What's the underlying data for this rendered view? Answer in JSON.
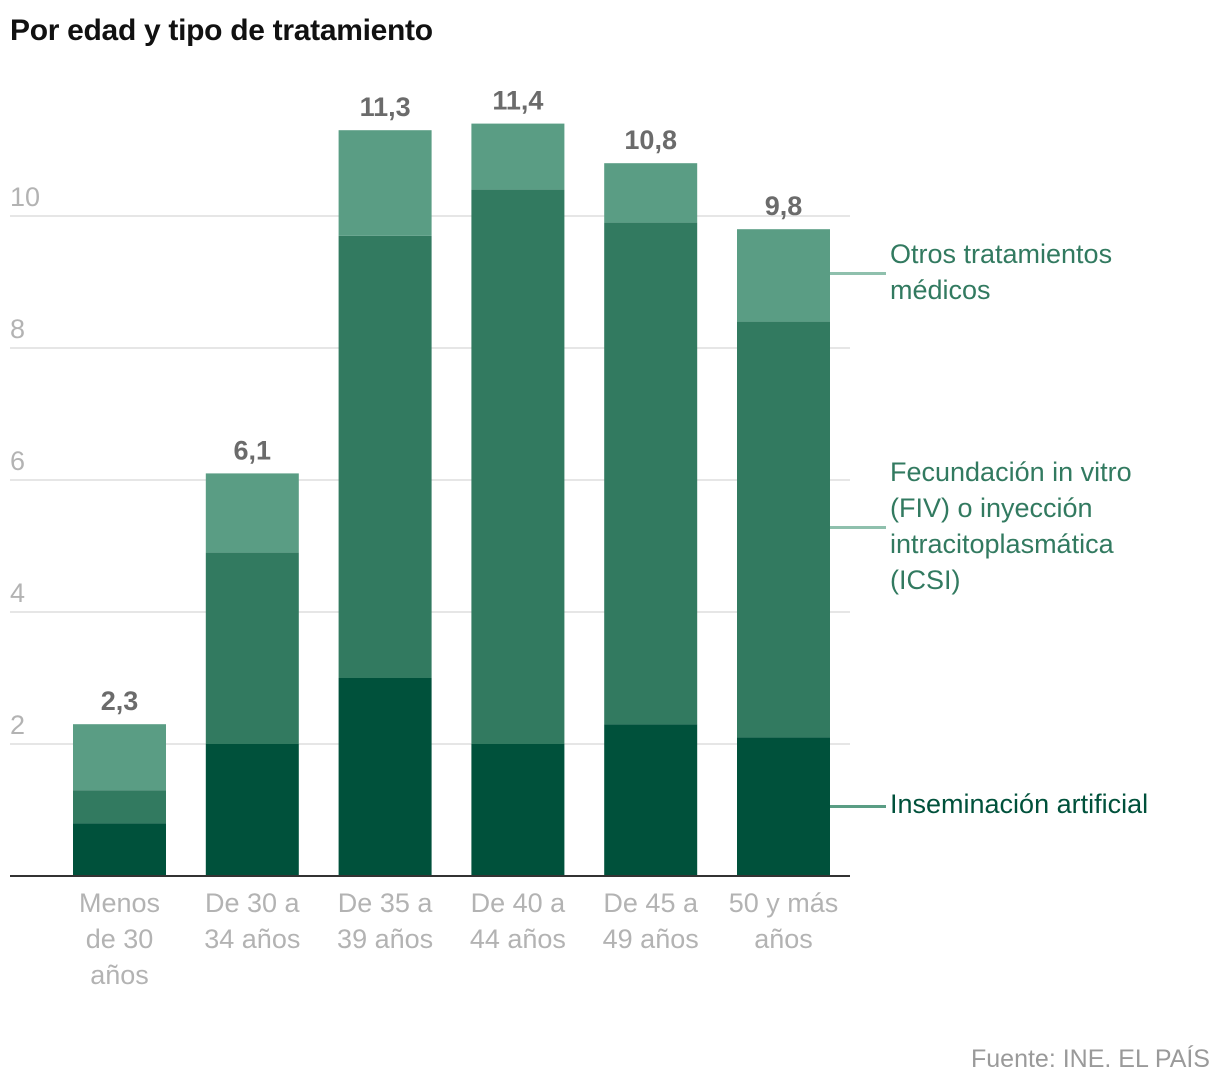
{
  "title": "Por edad y tipo de tratamiento",
  "source": "Fuente: INE. EL PAÍS",
  "colors": {
    "inseminacion": "#00513b",
    "fiv": "#327a60",
    "otros": "#5a9d84",
    "grid": "#dddddd",
    "axis": "#333333",
    "tick_text": "#b3b3b3",
    "total_text": "#6b6b6b"
  },
  "legend": [
    {
      "key": "otros",
      "label_lines": [
        "Otros tratamientos",
        "médicos"
      ],
      "line_color": "#8fc0ad",
      "text_color": "#327a60"
    },
    {
      "key": "fiv",
      "label_lines": [
        "Fecundación in vitro",
        "(FIV) o inyección",
        "intracitoplasmática",
        "(ICSI)"
      ],
      "line_color": "#8fc0ad",
      "text_color": "#327a60"
    },
    {
      "key": "inseminacion",
      "label_lines": [
        "Inseminación artificial"
      ],
      "line_color": "#5a9d84",
      "text_color": "#00513b"
    }
  ],
  "chart_data": {
    "type": "bar",
    "stacked": true,
    "title": "Por edad y tipo de tratamiento",
    "categories": [
      [
        "Menos",
        "de 30",
        "años"
      ],
      [
        "De 30 a",
        "34 años"
      ],
      [
        "De 35 a",
        "39 años"
      ],
      [
        "De 40 a",
        "44 años"
      ],
      [
        "De 45 a",
        "49 años"
      ],
      [
        "50 y más",
        "años"
      ]
    ],
    "series": [
      {
        "name": "Inseminación artificial",
        "key": "inseminacion",
        "values": [
          0.8,
          2.0,
          3.0,
          2.0,
          2.3,
          2.1
        ]
      },
      {
        "name": "Fecundación in vitro (FIV) o inyección intracitoplasmática (ICSI)",
        "key": "fiv",
        "values": [
          0.5,
          2.9,
          6.7,
          8.4,
          7.6,
          6.3
        ]
      },
      {
        "name": "Otros tratamientos médicos",
        "key": "otros",
        "values": [
          1.0,
          1.2,
          1.6,
          1.0,
          0.9,
          1.4
        ]
      }
    ],
    "totals": [
      "2,3",
      "6,1",
      "11,3",
      "11,4",
      "10,8",
      "9,8"
    ],
    "yticks": [
      "2",
      "4",
      "6",
      "8",
      "10"
    ],
    "ylim": [
      0,
      12
    ],
    "grid": true,
    "legend_position": "right"
  }
}
